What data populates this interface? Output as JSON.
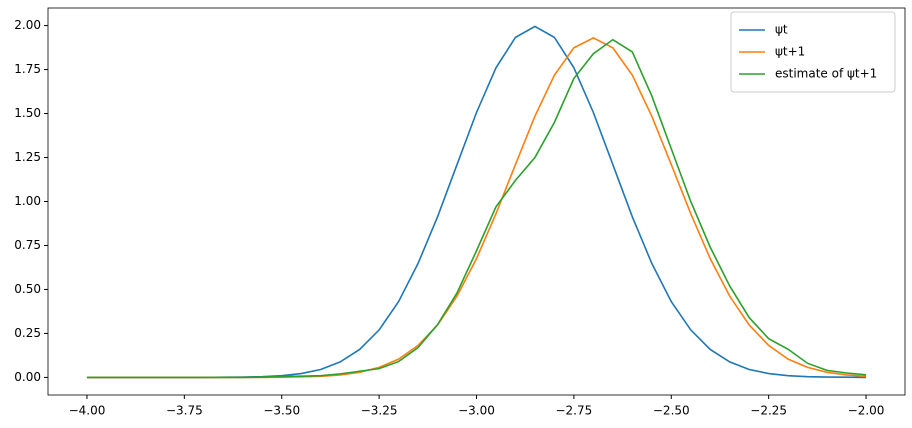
{
  "chart_data": {
    "type": "line",
    "x": [
      -4.0,
      -3.95,
      -3.9,
      -3.85,
      -3.8,
      -3.75,
      -3.7,
      -3.65,
      -3.6,
      -3.55,
      -3.5,
      -3.45,
      -3.4,
      -3.35,
      -3.3,
      -3.25,
      -3.2,
      -3.15,
      -3.1,
      -3.05,
      -3.0,
      -2.95,
      -2.9,
      -2.85,
      -2.8,
      -2.75,
      -2.7,
      -2.65,
      -2.6,
      -2.55,
      -2.5,
      -2.45,
      -2.4,
      -2.35,
      -2.3,
      -2.25,
      -2.2,
      -2.15,
      -2.1,
      -2.05,
      -2.0
    ],
    "series": [
      {
        "name": "ψt",
        "color": "#1f77b4",
        "values": [
          0,
          0,
          0,
          0,
          0,
          0,
          0,
          0.001,
          0.002,
          0.004,
          0.01,
          0.022,
          0.045,
          0.088,
          0.159,
          0.27,
          0.431,
          0.648,
          0.913,
          1.21,
          1.506,
          1.76,
          1.933,
          1.995,
          1.933,
          1.76,
          1.506,
          1.21,
          0.913,
          0.648,
          0.431,
          0.27,
          0.159,
          0.088,
          0.045,
          0.022,
          0.01,
          0.004,
          0.002,
          0.001,
          0
        ]
      },
      {
        "name": "ψt+1",
        "color": "#ff7f0e",
        "values": [
          0,
          0,
          0,
          0,
          0,
          0,
          0,
          0,
          0,
          0,
          0.001,
          0.003,
          0.006,
          0.014,
          0.029,
          0.057,
          0.104,
          0.182,
          0.298,
          0.462,
          0.675,
          0.931,
          1.21,
          1.485,
          1.718,
          1.874,
          1.93,
          1.874,
          1.718,
          1.485,
          1.21,
          0.931,
          0.675,
          0.462,
          0.298,
          0.182,
          0.104,
          0.057,
          0.029,
          0.014,
          0.006
        ]
      },
      {
        "name": "estimate of ψt+1",
        "color": "#2ca02c",
        "values": [
          0,
          0,
          0,
          0,
          0,
          0,
          0,
          0,
          0,
          0.002,
          0.005,
          0.007,
          0.01,
          0.02,
          0.035,
          0.05,
          0.09,
          0.17,
          0.3,
          0.48,
          0.72,
          0.97,
          1.12,
          1.25,
          1.45,
          1.7,
          1.84,
          1.92,
          1.85,
          1.6,
          1.3,
          1.0,
          0.74,
          0.52,
          0.34,
          0.22,
          0.16,
          0.08,
          0.04,
          0.025,
          0.015
        ]
      }
    ],
    "xlim": [
      -4.1,
      -1.9
    ],
    "ylim": [
      -0.1,
      2.1
    ],
    "xticks": [
      {
        "value": -4.0,
        "label": "−4.00"
      },
      {
        "value": -3.75,
        "label": "−3.75"
      },
      {
        "value": -3.5,
        "label": "−3.50"
      },
      {
        "value": -3.25,
        "label": "−3.25"
      },
      {
        "value": -3.0,
        "label": "−3.00"
      },
      {
        "value": -2.75,
        "label": "−2.75"
      },
      {
        "value": -2.5,
        "label": "−2.50"
      },
      {
        "value": -2.25,
        "label": "−2.25"
      },
      {
        "value": -2.0,
        "label": "−2.00"
      }
    ],
    "yticks": [
      {
        "value": 0,
        "label": "0.00"
      },
      {
        "value": 0.25,
        "label": "0.25"
      },
      {
        "value": 0.5,
        "label": "0.50"
      },
      {
        "value": 0.75,
        "label": "0.75"
      },
      {
        "value": 1.0,
        "label": "1.00"
      },
      {
        "value": 1.25,
        "label": "1.25"
      },
      {
        "value": 1.5,
        "label": "1.50"
      },
      {
        "value": 1.75,
        "label": "1.75"
      },
      {
        "value": 2.0,
        "label": "2.00"
      }
    ],
    "legend": "upper right"
  }
}
